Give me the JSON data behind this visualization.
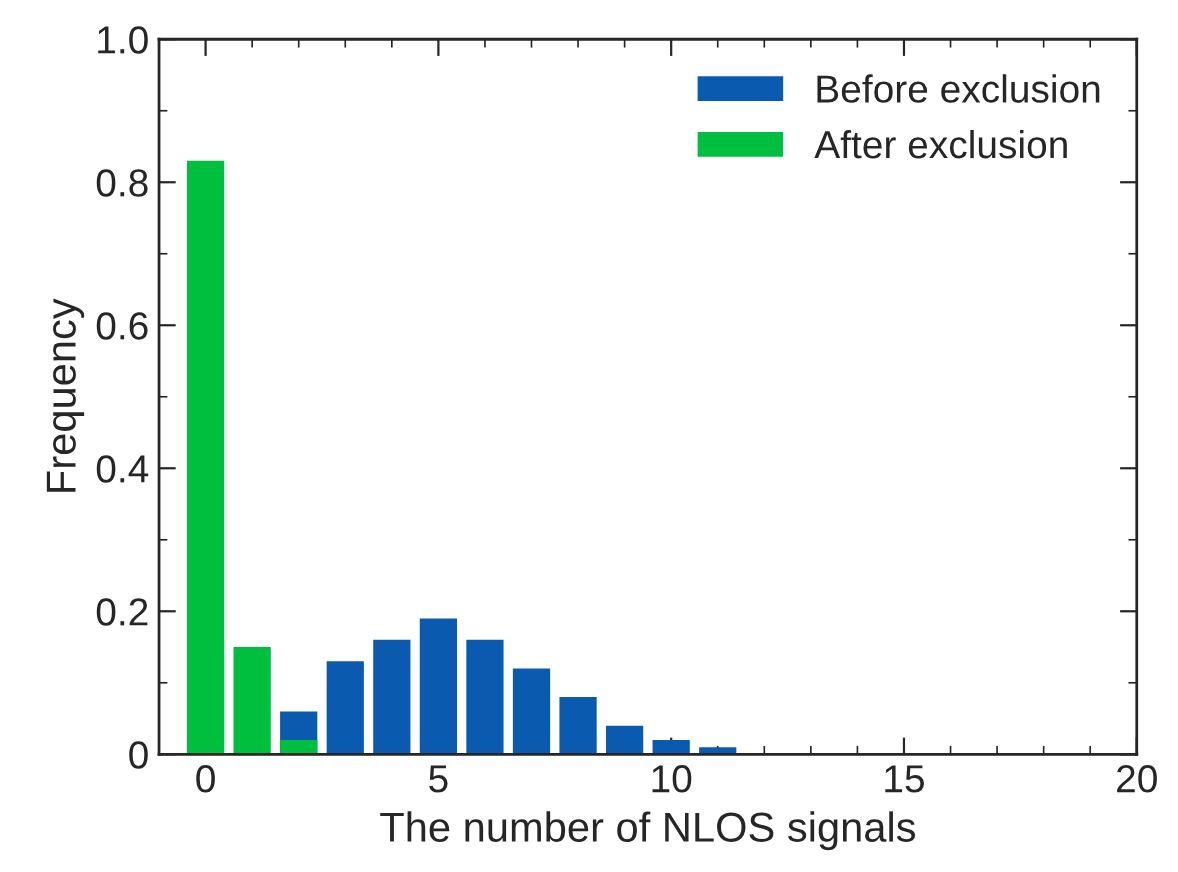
{
  "chart_data": {
    "type": "bar",
    "xlabel": "The number of NLOS signals",
    "ylabel": "Frequency",
    "x": [
      0,
      1,
      2,
      3,
      4,
      5,
      6,
      7,
      8,
      9,
      10,
      11
    ],
    "series": [
      {
        "name": "Before exclusion",
        "color": "#0a5bb0",
        "values": [
          null,
          null,
          0.06,
          0.13,
          0.16,
          0.19,
          0.16,
          0.12,
          0.08,
          0.04,
          0.02,
          0.01
        ]
      },
      {
        "name": "After exclusion",
        "color": "#00bf3f",
        "values": [
          0.83,
          0.15,
          0.02,
          null,
          null,
          null,
          null,
          null,
          null,
          null,
          null,
          null
        ]
      }
    ],
    "xlim": [
      -1,
      20
    ],
    "ylim": [
      0,
      1.0
    ],
    "xticks": [
      0,
      {
        "value": 1,
        "label": null
      },
      {
        "value": 2,
        "label": null
      },
      {
        "value": 3,
        "label": null
      },
      {
        "value": 4,
        "label": null
      },
      5,
      {
        "value": 6,
        "label": null
      },
      {
        "value": 7,
        "label": null
      },
      {
        "value": 8,
        "label": null
      },
      {
        "value": 9,
        "label": null
      },
      10,
      {
        "value": 11,
        "label": null
      },
      {
        "value": 12,
        "label": null
      },
      {
        "value": 13,
        "label": null
      },
      {
        "value": 14,
        "label": null
      },
      15,
      {
        "value": 16,
        "label": null
      },
      {
        "value": 17,
        "label": null
      },
      {
        "value": 18,
        "label": null
      },
      {
        "value": 19,
        "label": null
      },
      20
    ],
    "yticks": [
      0,
      {
        "value": 0.1,
        "label": null
      },
      0.2,
      {
        "value": 0.3,
        "label": null
      },
      0.4,
      {
        "value": 0.5,
        "label": null
      },
      0.6,
      {
        "value": 0.7,
        "label": null
      },
      0.8,
      {
        "value": 0.9,
        "label": null
      },
      {
        "value": 1.0,
        "label": "1.0"
      }
    ],
    "grid": false,
    "legend": "top right"
  }
}
